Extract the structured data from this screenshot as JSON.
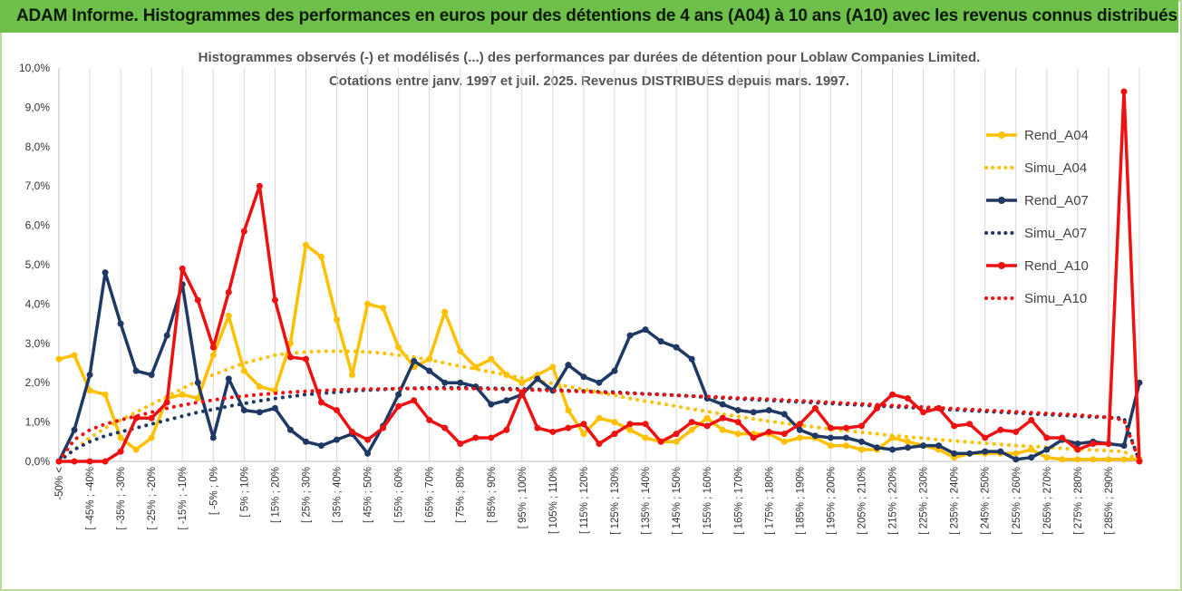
{
  "banner": "ADAM Informe. Histogrammes des performances en euros pour des détentions de 4 ans (A04) à 10 ans (A10) avec les revenus connus distribués",
  "chart_data": {
    "type": "line",
    "title": "Histogrammes observés (-) et modélisés (...) des performances par durées de détention pour Loblaw Companies Limited.",
    "subtitle": "Cotations entre janv. 1997 et juil. 2025. Revenus DISTRIBUES depuis mars. 1997.",
    "xlabel": "",
    "ylabel": "",
    "ylim": [
      0,
      10
    ],
    "y_ticks": [
      "0,0%",
      "1,0%",
      "2,0%",
      "3,0%",
      "4,0%",
      "5,0%",
      "6,0%",
      "7,0%",
      "8,0%",
      "9,0%",
      "10,0%"
    ],
    "grid": "vertical",
    "legend_position": "right",
    "x_labels": [
      "-50% <",
      "[ -45% ; -40%",
      "[ -35% ; -30%",
      "[ -25% ; -20%",
      "[ -15% ; -10%",
      "[ -5% ; 0%",
      "[ 5% ; 10%",
      "[ 15% ; 20%",
      "[ 25% ; 30%",
      "[ 35% ; 40%",
      "[ 45% ; 50%",
      "[ 55% ; 60%",
      "[ 65% ; 70%",
      "[ 75% ; 80%",
      "[ 85% ; 90%",
      "[ 95% ; 100%",
      "[ 105% ; 110%",
      "[ 115% ; 120%",
      "[ 125% ; 130%",
      "[ 135% ; 140%",
      "[ 145% ; 150%",
      "[ 155% ; 160%",
      "[ 165% ; 170%",
      "[ 175% ; 180%",
      "[ 185% ; 190%",
      "[ 195% ; 200%",
      "[ 205% ; 210%",
      "[ 215% ; 220%",
      "[ 225% ; 230%",
      "[ 235% ; 240%",
      "[ 245% ; 250%",
      "[ 255% ; 260%",
      "[ 265% ; 270%",
      "[ 275% ; 280%",
      "[ 285% ; 290%"
    ],
    "series": [
      {
        "name": "Rend_A04",
        "style": "solid",
        "color": "#ffc000",
        "values": [
          2.6,
          2.7,
          1.8,
          1.7,
          0.6,
          0.3,
          0.6,
          1.6,
          1.7,
          1.6,
          2.7,
          3.7,
          2.3,
          1.9,
          1.8,
          3.0,
          5.5,
          5.2,
          3.6,
          2.2,
          4.0,
          3.9,
          2.9,
          2.4,
          2.6,
          3.8,
          2.8,
          2.4,
          2.6,
          2.2,
          2.0,
          2.2,
          2.4,
          1.3,
          0.7,
          1.1,
          1.0,
          0.8,
          0.6,
          0.5,
          0.5,
          0.8,
          1.1,
          0.8,
          0.7,
          0.7,
          0.7,
          0.5,
          0.6,
          0.6,
          0.4,
          0.4,
          0.3,
          0.3,
          0.6,
          0.5,
          0.4,
          0.3,
          0.1,
          0.2,
          0.2,
          0.2,
          0.2,
          0.3,
          0.1,
          0.05,
          0.05,
          0.05,
          0.05,
          0.05,
          0.05
        ]
      },
      {
        "name": "Simu_A04",
        "style": "dotted",
        "color": "#ffc000",
        "values": [
          0.0,
          0.3,
          0.6,
          0.85,
          1.05,
          1.25,
          1.45,
          1.65,
          1.85,
          2.05,
          2.2,
          2.35,
          2.5,
          2.6,
          2.7,
          2.75,
          2.78,
          2.8,
          2.8,
          2.8,
          2.78,
          2.75,
          2.7,
          2.65,
          2.58,
          2.5,
          2.42,
          2.35,
          2.27,
          2.2,
          2.12,
          2.05,
          1.98,
          1.9,
          1.83,
          1.75,
          1.68,
          1.6,
          1.53,
          1.47,
          1.4,
          1.33,
          1.27,
          1.2,
          1.14,
          1.08,
          1.02,
          0.97,
          0.92,
          0.87,
          0.82,
          0.78,
          0.74,
          0.7,
          0.66,
          0.62,
          0.59,
          0.55,
          0.52,
          0.49,
          0.46,
          0.43,
          0.4,
          0.38,
          0.36,
          0.33,
          0.31,
          0.29,
          0.27,
          0.25,
          0.0
        ]
      },
      {
        "name": "Rend_A07",
        "style": "solid",
        "color": "#1f3864",
        "values": [
          0.0,
          0.8,
          2.2,
          4.8,
          3.5,
          2.3,
          2.2,
          3.2,
          4.5,
          2.0,
          0.6,
          2.1,
          1.3,
          1.25,
          1.35,
          0.8,
          0.5,
          0.4,
          0.55,
          0.7,
          0.2,
          0.9,
          1.7,
          2.55,
          2.3,
          2.0,
          2.0,
          1.9,
          1.45,
          1.55,
          1.7,
          2.1,
          1.8,
          2.45,
          2.15,
          2.0,
          2.3,
          3.2,
          3.35,
          3.05,
          2.9,
          2.6,
          1.6,
          1.45,
          1.3,
          1.25,
          1.3,
          1.2,
          0.8,
          0.65,
          0.6,
          0.6,
          0.5,
          0.35,
          0.3,
          0.35,
          0.4,
          0.4,
          0.2,
          0.2,
          0.25,
          0.25,
          0.05,
          0.1,
          0.3,
          0.55,
          0.45,
          0.5,
          0.45,
          0.4,
          2.0
        ]
      },
      {
        "name": "Simu_A07",
        "style": "dotted",
        "color": "#1f3864",
        "values": [
          0.0,
          0.3,
          0.5,
          0.65,
          0.75,
          0.85,
          0.95,
          1.05,
          1.15,
          1.25,
          1.32,
          1.4,
          1.47,
          1.54,
          1.6,
          1.65,
          1.7,
          1.73,
          1.76,
          1.79,
          1.81,
          1.83,
          1.85,
          1.86,
          1.87,
          1.87,
          1.87,
          1.87,
          1.86,
          1.85,
          1.84,
          1.83,
          1.82,
          1.8,
          1.79,
          1.77,
          1.76,
          1.74,
          1.72,
          1.7,
          1.68,
          1.66,
          1.63,
          1.61,
          1.59,
          1.57,
          1.55,
          1.53,
          1.51,
          1.49,
          1.47,
          1.45,
          1.43,
          1.41,
          1.39,
          1.37,
          1.35,
          1.33,
          1.31,
          1.29,
          1.27,
          1.25,
          1.23,
          1.21,
          1.19,
          1.17,
          1.15,
          1.13,
          1.12,
          1.1,
          0.0
        ]
      },
      {
        "name": "Rend_A10",
        "style": "solid",
        "color": "#ee1111",
        "values": [
          0.0,
          0.0,
          0.0,
          0.0,
          0.25,
          1.1,
          1.1,
          1.5,
          4.9,
          4.1,
          2.9,
          4.3,
          5.85,
          7.0,
          4.1,
          2.65,
          2.6,
          1.5,
          1.3,
          0.75,
          0.55,
          0.85,
          1.4,
          1.55,
          1.05,
          0.85,
          0.45,
          0.6,
          0.6,
          0.8,
          1.75,
          0.85,
          0.75,
          0.85,
          0.95,
          0.45,
          0.7,
          0.95,
          0.95,
          0.5,
          0.7,
          1.0,
          0.9,
          1.1,
          1.0,
          0.6,
          0.75,
          0.7,
          0.95,
          1.35,
          0.85,
          0.85,
          0.9,
          1.35,
          1.7,
          1.6,
          1.25,
          1.35,
          0.9,
          0.95,
          0.6,
          0.8,
          0.75,
          1.05,
          0.6,
          0.6,
          0.3,
          0.45,
          0.45,
          9.4,
          0.0
        ]
      },
      {
        "name": "Simu_A10",
        "style": "dotted",
        "color": "#ee1111",
        "values": [
          0.0,
          0.55,
          0.8,
          0.95,
          1.05,
          1.15,
          1.25,
          1.35,
          1.43,
          1.5,
          1.56,
          1.62,
          1.66,
          1.7,
          1.73,
          1.76,
          1.78,
          1.8,
          1.82,
          1.83,
          1.84,
          1.84,
          1.85,
          1.85,
          1.85,
          1.85,
          1.85,
          1.85,
          1.84,
          1.83,
          1.82,
          1.81,
          1.8,
          1.79,
          1.77,
          1.76,
          1.74,
          1.73,
          1.71,
          1.7,
          1.68,
          1.66,
          1.65,
          1.63,
          1.61,
          1.6,
          1.58,
          1.56,
          1.54,
          1.52,
          1.5,
          1.48,
          1.46,
          1.44,
          1.42,
          1.4,
          1.38,
          1.36,
          1.34,
          1.32,
          1.3,
          1.28,
          1.26,
          1.24,
          1.22,
          1.2,
          1.18,
          1.15,
          1.12,
          1.05,
          0.0
        ]
      }
    ]
  }
}
